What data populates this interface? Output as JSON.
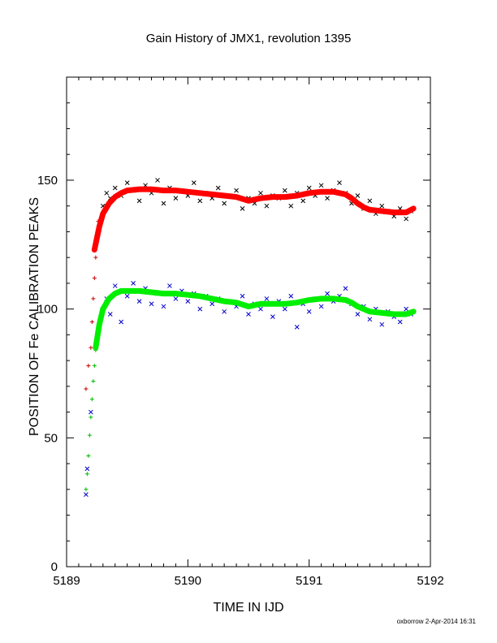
{
  "chart_data": {
    "type": "scatter",
    "title": "Gain History of JMX1, revolution 1395",
    "xlabel": "TIME IN IJD",
    "ylabel": "POSITION OF Fe CALIBRATION PEAKS",
    "xlim": [
      5189,
      5192
    ],
    "ylim": [
      0,
      190
    ],
    "x_ticks": [
      "5189",
      "5190",
      "5191",
      "5192"
    ],
    "y_ticks": [
      "0",
      "50",
      "100",
      "150"
    ],
    "grid": false,
    "legend": "none",
    "series": [
      {
        "marker": "cross",
        "color": "#000000",
        "x": [
          5189.3,
          5189.33,
          5189.36,
          5189.4,
          5189.45,
          5189.5,
          5189.55,
          5189.6,
          5189.65,
          5189.7,
          5189.75,
          5189.8,
          5189.85,
          5189.9,
          5189.95,
          5190.0,
          5190.05,
          5190.1,
          5190.15,
          5190.2,
          5190.25,
          5190.3,
          5190.35,
          5190.4,
          5190.45,
          5190.5,
          5190.55,
          5190.6,
          5190.65,
          5190.7,
          5190.75,
          5190.8,
          5190.85,
          5190.9,
          5190.95,
          5191.0,
          5191.05,
          5191.1,
          5191.15,
          5191.2,
          5191.25,
          5191.3,
          5191.35,
          5191.4,
          5191.45,
          5191.5,
          5191.55,
          5191.6,
          5191.65,
          5191.7,
          5191.75,
          5191.8,
          5191.84
        ],
        "y": [
          140,
          145,
          143,
          147,
          144,
          149,
          146,
          142,
          148,
          145,
          150,
          141,
          147,
          143,
          146,
          144,
          149,
          142,
          145,
          143,
          147,
          141,
          144,
          146,
          139,
          143,
          141,
          145,
          140,
          144,
          143,
          146,
          140,
          145,
          142,
          147,
          144,
          148,
          143,
          146,
          149,
          145,
          141,
          144,
          139,
          142,
          137,
          140,
          138,
          136,
          139,
          135,
          138
        ]
      },
      {
        "marker": "plus",
        "color": "#cc0000",
        "x": [
          5189.16,
          5189.18,
          5189.2,
          5189.21,
          5189.22,
          5189.23,
          5189.24,
          5189.25,
          5189.26
        ],
        "y": [
          69,
          78,
          85,
          95,
          104,
          112,
          120,
          127,
          134
        ]
      },
      {
        "marker": "cross",
        "color": "#0000cc",
        "x": [
          5189.16,
          5189.17,
          5189.2,
          5189.3,
          5189.33,
          5189.36,
          5189.4,
          5189.45,
          5189.5,
          5189.55,
          5189.6,
          5189.65,
          5189.7,
          5189.75,
          5189.8,
          5189.85,
          5189.9,
          5189.95,
          5190.0,
          5190.05,
          5190.1,
          5190.15,
          5190.2,
          5190.25,
          5190.3,
          5190.35,
          5190.4,
          5190.45,
          5190.5,
          5190.55,
          5190.6,
          5190.65,
          5190.7,
          5190.75,
          5190.8,
          5190.85,
          5190.9,
          5190.95,
          5191.0,
          5191.05,
          5191.1,
          5191.15,
          5191.2,
          5191.25,
          5191.3,
          5191.35,
          5191.4,
          5191.45,
          5191.5,
          5191.55,
          5191.6,
          5191.65,
          5191.7,
          5191.75,
          5191.8,
          5191.84
        ],
        "y": [
          28,
          38,
          60,
          100,
          104,
          98,
          109,
          95,
          105,
          110,
          103,
          108,
          102,
          106,
          101,
          109,
          104,
          107,
          103,
          106,
          100,
          105,
          102,
          104,
          99,
          103,
          101,
          105,
          98,
          102,
          100,
          104,
          97,
          103,
          100,
          105,
          93,
          102,
          99,
          104,
          101,
          106,
          103,
          105,
          108,
          102,
          98,
          101,
          96,
          100,
          94,
          99,
          97,
          95,
          100,
          98
        ]
      },
      {
        "marker": "plus",
        "color": "#00bb00",
        "x": [
          5189.16,
          5189.17,
          5189.18,
          5189.19,
          5189.2,
          5189.21,
          5189.22,
          5189.23,
          5189.24,
          5189.26
        ],
        "y": [
          30,
          36,
          43,
          51,
          58,
          65,
          72,
          78,
          84,
          90
        ]
      },
      {
        "marker": "line",
        "color": "#ff0000",
        "x": [
          5189.23,
          5189.27,
          5189.3,
          5189.35,
          5189.4,
          5189.45,
          5189.5,
          5189.6,
          5189.7,
          5189.8,
          5189.9,
          5190.0,
          5190.1,
          5190.2,
          5190.3,
          5190.4,
          5190.5,
          5190.6,
          5190.7,
          5190.8,
          5190.9,
          5191.0,
          5191.1,
          5191.2,
          5191.3,
          5191.35,
          5191.4,
          5191.45,
          5191.5,
          5191.6,
          5191.7,
          5191.8,
          5191.86
        ],
        "y": [
          123,
          132,
          137,
          141,
          143.5,
          145,
          146,
          146.5,
          146.5,
          146,
          146,
          145.5,
          145,
          144.5,
          144,
          143.5,
          142,
          143,
          143.5,
          143.5,
          144,
          145,
          145.5,
          145.5,
          144.5,
          143,
          141,
          139.5,
          138.5,
          138,
          137.5,
          137.5,
          139
        ]
      },
      {
        "marker": "line",
        "color": "#00ee00",
        "x": [
          5189.24,
          5189.27,
          5189.3,
          5189.35,
          5189.4,
          5189.45,
          5189.5,
          5189.6,
          5189.7,
          5189.8,
          5189.9,
          5190.0,
          5190.1,
          5190.2,
          5190.3,
          5190.4,
          5190.5,
          5190.6,
          5190.7,
          5190.8,
          5190.9,
          5191.0,
          5191.1,
          5191.2,
          5191.3,
          5191.35,
          5191.4,
          5191.45,
          5191.5,
          5191.6,
          5191.7,
          5191.8,
          5191.86
        ],
        "y": [
          85,
          94,
          100,
          104,
          106,
          107,
          107,
          107,
          106.5,
          106,
          106,
          105.5,
          105,
          104,
          103,
          102.5,
          101,
          102,
          102,
          102,
          102.5,
          103.5,
          104,
          104,
          103.5,
          102.5,
          101,
          100,
          99,
          98.5,
          98,
          98,
          99
        ]
      }
    ]
  },
  "footer": {
    "stamp": "oxborrow  2-Apr-2014 16:31"
  }
}
